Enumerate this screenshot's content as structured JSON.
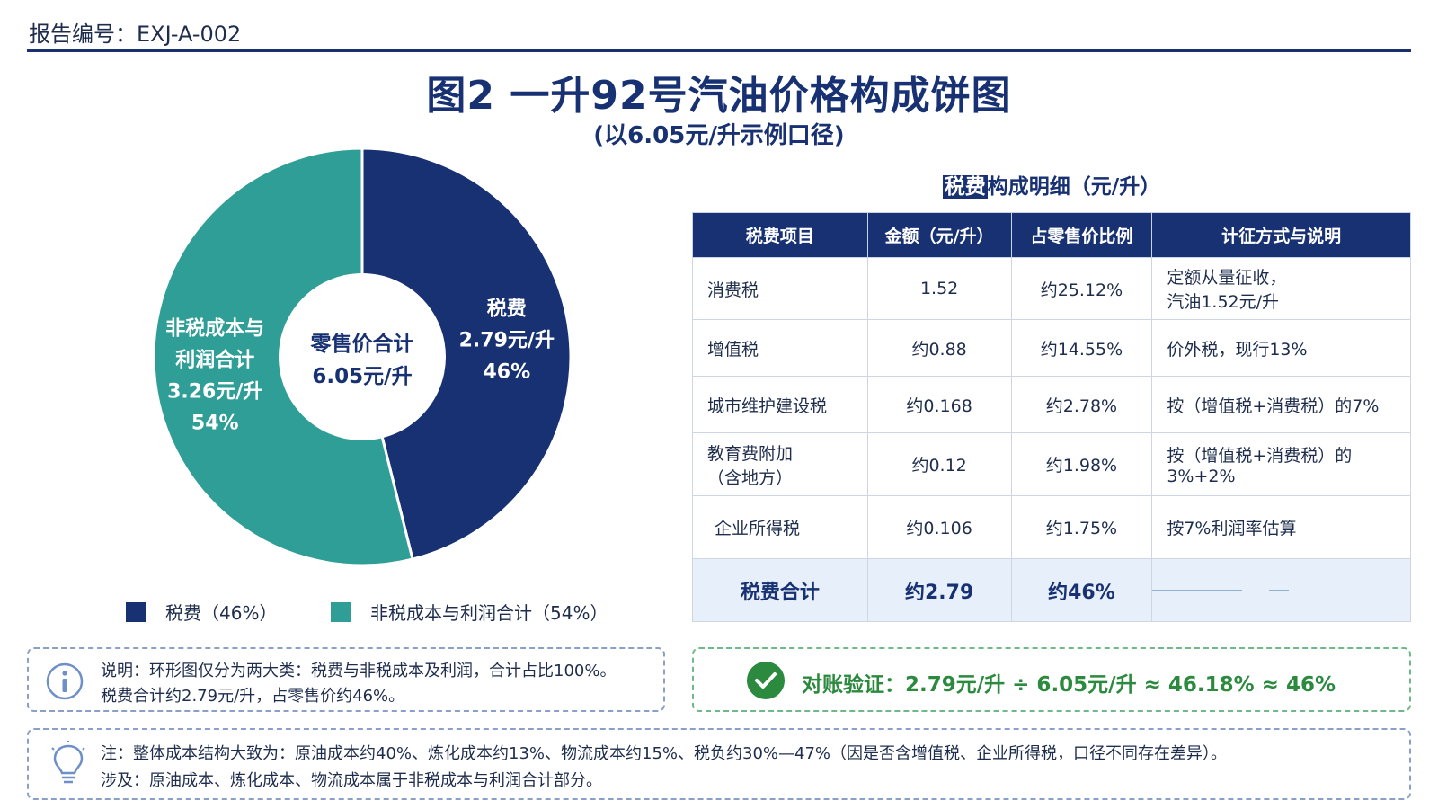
{
  "header": {
    "report_no": "报告编号：EXJ-A-002",
    "title": "图2 一升92号汽油价格构成饼图",
    "subtitle": "(以6.05元/升示例口径)"
  },
  "colors": {
    "tax": "#173173",
    "non_tax": "#2f9e96",
    "accent": "#173173",
    "success": "#2b8a3e"
  },
  "chart_data": {
    "type": "pie",
    "variant": "donut",
    "title": "图2 一升92号汽油价格构成饼图",
    "subtitle": "(以6.05元/升示例口径)",
    "center_label": [
      "零售价合计",
      "6.05元/升"
    ],
    "slices": [
      {
        "name": "税费",
        "value": 2.79,
        "percent": 46,
        "color": "#173173",
        "label_lines": [
          "税费",
          "2.79元/升",
          "46%"
        ],
        "legend": "税费（46%）"
      },
      {
        "name": "非税成本与利润合计",
        "value": 3.26,
        "percent": 54,
        "color": "#2f9e96",
        "label_lines": [
          "非税成本与",
          "利润合计",
          "3.26元/升",
          "54%"
        ],
        "legend": "非税成本与利润合计（54%）"
      }
    ],
    "legend_position": "bottom"
  },
  "table": {
    "title_highlight": "税费",
    "title_rest": "构成明细（元/升）",
    "headers": [
      "税费项目",
      "金额（元/升）",
      "占零售价比例",
      "计征方式与说明"
    ],
    "rows": [
      {
        "item": "消费税",
        "amount": "1.52",
        "ratio": "约25.12%",
        "note_lines": [
          "定额从量征收，",
          "汽油1.52元/升"
        ]
      },
      {
        "item": "增值税",
        "amount": "约0.88",
        "ratio": "约14.55%",
        "note_lines": [
          "价外税，现行13%"
        ]
      },
      {
        "item": "城市维护建设税",
        "amount": "约0.168",
        "ratio": "约2.78%",
        "note_lines": [
          "按（增值税+消费税）的7%"
        ]
      },
      {
        "item_lines": [
          "教育费附加",
          "（含地方）"
        ],
        "amount": "约0.12",
        "ratio": "约1.98%",
        "note_lines": [
          "按（增值税+消费税）的",
          "3%+2%"
        ]
      },
      {
        "item": "企业所得税",
        "amount": "约0.106",
        "ratio": "约1.75%",
        "note_lines": [
          "按7%利润率估算"
        ]
      }
    ],
    "total": {
      "item": "税费合计",
      "amount": "约2.79",
      "ratio": "约46%"
    }
  },
  "note": {
    "icon": "info-icon",
    "line1": "说明：环形图仅分为两大类：税费与非税成本及利润，合计占比100%。",
    "line2": "税费合计约2.79元/升，占零售价约46%。"
  },
  "verification": {
    "icon": "check-circle-icon",
    "text": "对账验证：2.79元/升 ÷ 6.05元/升 ≈ 46.18% ≈ 46%"
  },
  "tip": {
    "icon": "lightbulb-icon",
    "line1": "注：整体成本结构大致为：原油成本约40%、炼化成本约13%、物流成本约15%、税负约30%—47%（因是否含增值税、企业所得税，口径不同存在差异）。",
    "line2": "涉及：原油成本、炼化成本、物流成本属于非税成本与利润合计部分。"
  }
}
